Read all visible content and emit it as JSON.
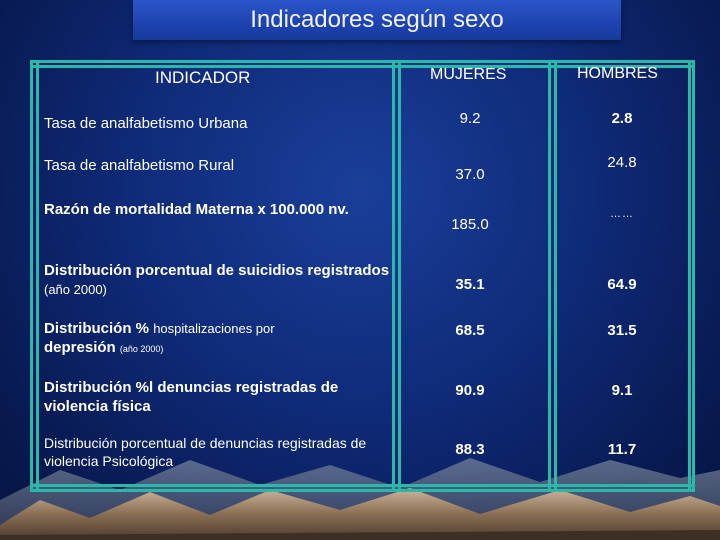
{
  "title": "Indicadores según sexo",
  "table": {
    "headers": {
      "indicator": "INDICADOR",
      "women": "MUJERES",
      "men": "HOMBRES"
    },
    "rows": [
      {
        "parts": [
          "Tasa de analfabetismo Urbana"
        ],
        "women": "9.2",
        "men": "2.8"
      },
      {
        "parts": [
          "Tasa de analfabetismo Rural"
        ],
        "women": "37.0",
        "men": "24.8"
      },
      {
        "parts": [
          "Razón de mortalidad Materna x 100.000 nv."
        ],
        "women": "185.0",
        "men": "……"
      },
      {
        "parts": [
          "Distribución porcentual de  suicidios registrados",
          "(año 2000)"
        ],
        "women": "35.1",
        "men": "64.9"
      },
      {
        "parts": [
          "Distribución %",
          "hospitalizaciones por",
          "depresión",
          "(año 2000)"
        ],
        "women": "68.5",
        "men": "31.5"
      },
      {
        "parts": [
          "Distribución %l denuncias registradas de violencia física"
        ],
        "women": "90.9",
        "men": "9.1"
      },
      {
        "parts": [
          "Distribución porcentual de denuncias registradas  de violencia  Psicológica"
        ],
        "women": "88.3",
        "men": "11.7"
      }
    ]
  },
  "colors": {
    "grid": "#2ab8a8",
    "title_box": "#1d43b0",
    "background": "#0f2a78"
  }
}
